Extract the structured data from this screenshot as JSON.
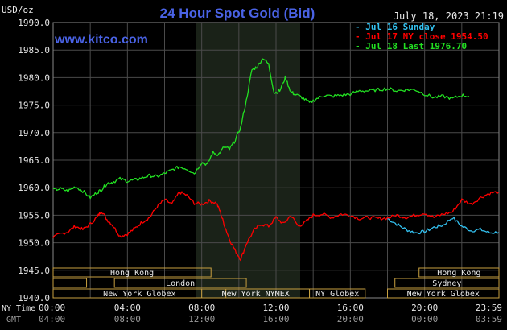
{
  "chart_data": {
    "type": "line",
    "title": "24 Hour Spot Gold (Bid)",
    "watermark": "www.kitco.com",
    "unit_label": "USD/oz",
    "timestamp": "July 18, 2023 21:19",
    "ylim": [
      1940.0,
      1990.0
    ],
    "yticks": [
      "1990.0",
      "1985.0",
      "1980.0",
      "1975.0",
      "1970.0",
      "1965.0",
      "1960.0",
      "1955.0",
      "1950.0",
      "1945.0",
      "1940.0"
    ],
    "x_ticks_ny": [
      "00:00",
      "04:00",
      "08:00",
      "12:00",
      "16:00",
      "20:00",
      "23:59"
    ],
    "x_ticks_gmt": [
      "04:00",
      "08:00",
      "12:00",
      "16:00",
      "20:00",
      "00:00",
      "03:59"
    ],
    "x_prefix_ny": "NY Time",
    "x_prefix_gmt": "GMT",
    "colors": {
      "background": "#000000",
      "grid": "#4a4a4a",
      "frame": "#888888",
      "title": "#4a63e6",
      "watermark": "#4a63e6",
      "shade": "#1a2218",
      "market_box": "#c8a040",
      "axis_text": "#e8e8e8"
    },
    "highlight_window_hours": [
      7.7,
      13.3
    ],
    "series": [
      {
        "name": "Jul 16 Sunday",
        "color": "#33c1f0",
        "x": [
          18.0,
          18.5,
          19.0,
          19.5,
          20.0,
          20.5,
          21.0,
          21.5,
          22.0,
          22.5,
          23.0,
          23.5,
          23.98
        ],
        "y": [
          1954.4,
          1953.4,
          1952.4,
          1951.8,
          1952.0,
          1952.8,
          1953.2,
          1954.6,
          1953.0,
          1952.2,
          1952.4,
          1951.8,
          1951.9
        ]
      },
      {
        "name": "Jul 17 NY close 1954.50",
        "color": "#ff0000",
        "x": [
          0.0,
          0.4,
          0.8,
          1.2,
          1.6,
          2.0,
          2.4,
          2.6,
          2.9,
          3.2,
          3.6,
          4.0,
          4.4,
          4.8,
          5.2,
          5.6,
          6.0,
          6.4,
          6.8,
          7.2,
          7.6,
          8.0,
          8.4,
          8.8,
          9.0,
          9.2,
          9.5,
          9.8,
          10.1,
          10.4,
          10.8,
          11.2,
          11.6,
          12.0,
          12.4,
          12.8,
          13.2,
          13.6,
          14.0,
          14.5,
          15.0,
          15.5,
          16.0,
          16.5,
          17.0,
          17.5,
          18.0,
          18.5,
          19.0,
          19.5,
          20.0,
          20.5,
          21.0,
          21.5,
          22.0,
          22.5,
          23.0,
          23.5,
          23.98
        ],
        "y": [
          1951.0,
          1951.6,
          1952.0,
          1953.0,
          1952.4,
          1953.4,
          1954.8,
          1955.8,
          1954.2,
          1953.2,
          1951.2,
          1951.6,
          1952.6,
          1953.8,
          1954.6,
          1956.6,
          1957.8,
          1957.0,
          1959.2,
          1958.6,
          1957.2,
          1957.0,
          1957.6,
          1957.2,
          1955.6,
          1953.4,
          1950.6,
          1948.6,
          1947.0,
          1949.8,
          1952.2,
          1953.4,
          1953.0,
          1954.6,
          1953.4,
          1955.0,
          1953.0,
          1953.8,
          1955.0,
          1955.2,
          1954.6,
          1955.2,
          1955.0,
          1954.4,
          1954.6,
          1954.4,
          1954.5,
          1955.0,
          1954.6,
          1955.0,
          1955.4,
          1954.6,
          1955.2,
          1955.6,
          1957.8,
          1957.0,
          1958.2,
          1959.0,
          1959.2
        ]
      },
      {
        "name": "Jul 18 Last 1976.70",
        "color": "#22e022",
        "x": [
          0.0,
          0.4,
          0.8,
          1.2,
          1.6,
          2.0,
          2.4,
          2.6,
          2.9,
          3.2,
          3.6,
          4.0,
          4.4,
          4.8,
          5.2,
          5.6,
          6.0,
          6.4,
          6.8,
          7.2,
          7.6,
          8.0,
          8.3,
          8.6,
          8.9,
          9.2,
          9.5,
          9.8,
          10.1,
          10.4,
          10.7,
          11.0,
          11.3,
          11.6,
          11.9,
          12.2,
          12.5,
          12.8,
          13.0,
          13.4,
          13.8,
          14.2,
          14.6,
          15.0,
          15.5,
          16.0,
          16.5,
          17.0,
          17.5,
          18.0,
          18.5,
          19.0,
          19.5,
          20.0,
          20.5,
          21.0,
          21.5,
          22.0,
          22.4
        ],
        "y": [
          1959.6,
          1959.8,
          1959.4,
          1960.2,
          1959.4,
          1958.2,
          1959.2,
          1959.6,
          1960.8,
          1961.0,
          1961.6,
          1961.2,
          1961.4,
          1961.8,
          1962.2,
          1962.0,
          1962.6,
          1963.2,
          1963.8,
          1963.4,
          1962.6,
          1964.6,
          1964.2,
          1966.4,
          1966.0,
          1967.4,
          1967.0,
          1968.6,
          1971.0,
          1975.8,
          1981.4,
          1982.0,
          1983.6,
          1982.4,
          1977.2,
          1977.6,
          1980.0,
          1977.4,
          1977.0,
          1976.4,
          1975.4,
          1976.2,
          1976.8,
          1976.6,
          1976.8,
          1977.0,
          1977.6,
          1977.6,
          1977.8,
          1978.0,
          1977.6,
          1977.8,
          1977.8,
          1977.0,
          1976.4,
          1976.6,
          1976.2,
          1976.8,
          1976.6
        ]
      }
    ],
    "market_rows": [
      {
        "label": "Hong Kong",
        "segments": [
          [
            -1.0,
            8.5
          ],
          [
            19.7,
            24.0
          ]
        ]
      },
      {
        "label": "London",
        "segments": [
          [
            0.0,
            3.0
          ],
          [
            3.0,
            10.0
          ],
          [
            19.0,
            24.0
          ]
        ]
      },
      {
        "label": "New York Globex",
        "segments": [
          [
            0.0,
            9.0
          ],
          [
            17.0,
            24.0
          ]
        ]
      },
      {
        "label": "New York NYMEX",
        "segments": [
          [
            8.0,
            14.0
          ]
        ]
      },
      {
        "label": "NY Globex",
        "segments": [
          [
            14.0,
            17.0
          ]
        ]
      },
      {
        "label": "Sydney",
        "segments": [
          [
            18.0,
            24.0
          ]
        ]
      }
    ],
    "market_labels": {
      "hk_left": "Hong Kong",
      "hk_right": "Hong Kong",
      "london": "London",
      "sydney": "Sydney",
      "nyg_left": "New York Globex",
      "nymex": "New York NYMEX",
      "nyglobex": "NY Globex",
      "nyg_right": "New York Globex"
    }
  }
}
